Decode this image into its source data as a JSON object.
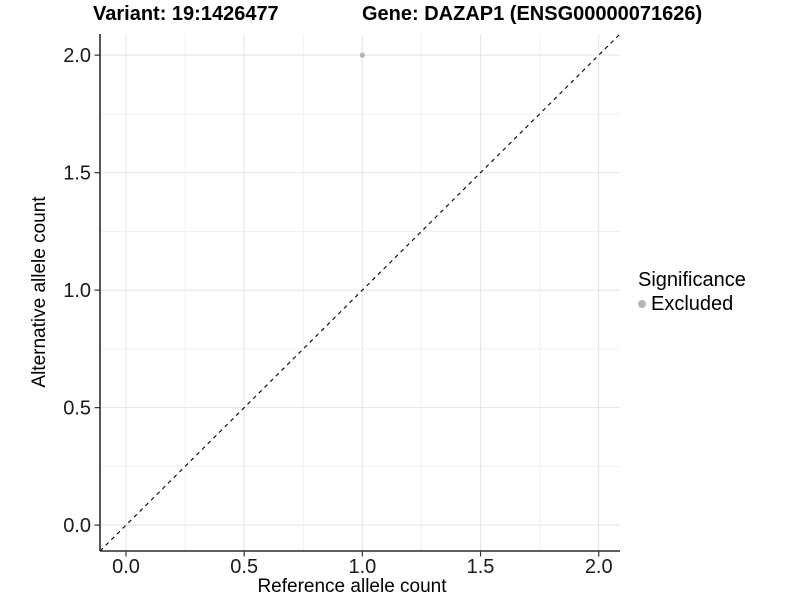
{
  "chart_data": {
    "type": "scatter",
    "titles": {
      "left": "Variant: 19:1426477",
      "right": "Gene: DAZAP1 (ENSG00000071626)"
    },
    "xlabel": "Reference allele count",
    "ylabel": "Alternative allele count",
    "xlim": [
      -0.11,
      2.09
    ],
    "ylim": [
      -0.11,
      2.09
    ],
    "xticks": {
      "values": [
        0,
        0.5,
        1.0,
        1.5,
        2.0
      ],
      "labels": [
        "0.0",
        "0.5",
        "1.0",
        "1.5",
        "2.0"
      ]
    },
    "yticks": {
      "values": [
        0,
        0.5,
        1.0,
        1.5,
        2.0
      ],
      "labels": [
        "0.0",
        "0.5",
        "1.0",
        "1.5",
        "2.0"
      ]
    },
    "xminor": [
      0.25,
      0.75,
      1.25,
      1.75
    ],
    "yminor": [
      0.25,
      0.75,
      1.25,
      1.75
    ],
    "grid": "major+minor",
    "series": [
      {
        "name": "Excluded",
        "color": "#b5b5b5",
        "marker": "circle",
        "marker_radius": 2.6,
        "points": [
          [
            1.0,
            2.0
          ]
        ]
      }
    ],
    "reference_line": {
      "kind": "identity y=x",
      "style": "dashed",
      "color": "#000000",
      "from": [
        -0.11,
        -0.11
      ],
      "to": [
        2.09,
        2.09
      ]
    },
    "legend_position": "right"
  },
  "legend": {
    "title": "Significance",
    "items": [
      {
        "label": "Excluded",
        "color": "#b5b5b5",
        "marker": "circle"
      }
    ]
  },
  "colors": {
    "background": "#ffffff",
    "grid_major": "#e4e4e4",
    "grid_minor": "#f1f1f1",
    "axis_line": "#2b2b2b",
    "tick_mark": "#333333",
    "tick_label": "#1a1a1a",
    "title_text": "#000000",
    "point": "#b5b5b5",
    "reference_line": "#000000"
  }
}
